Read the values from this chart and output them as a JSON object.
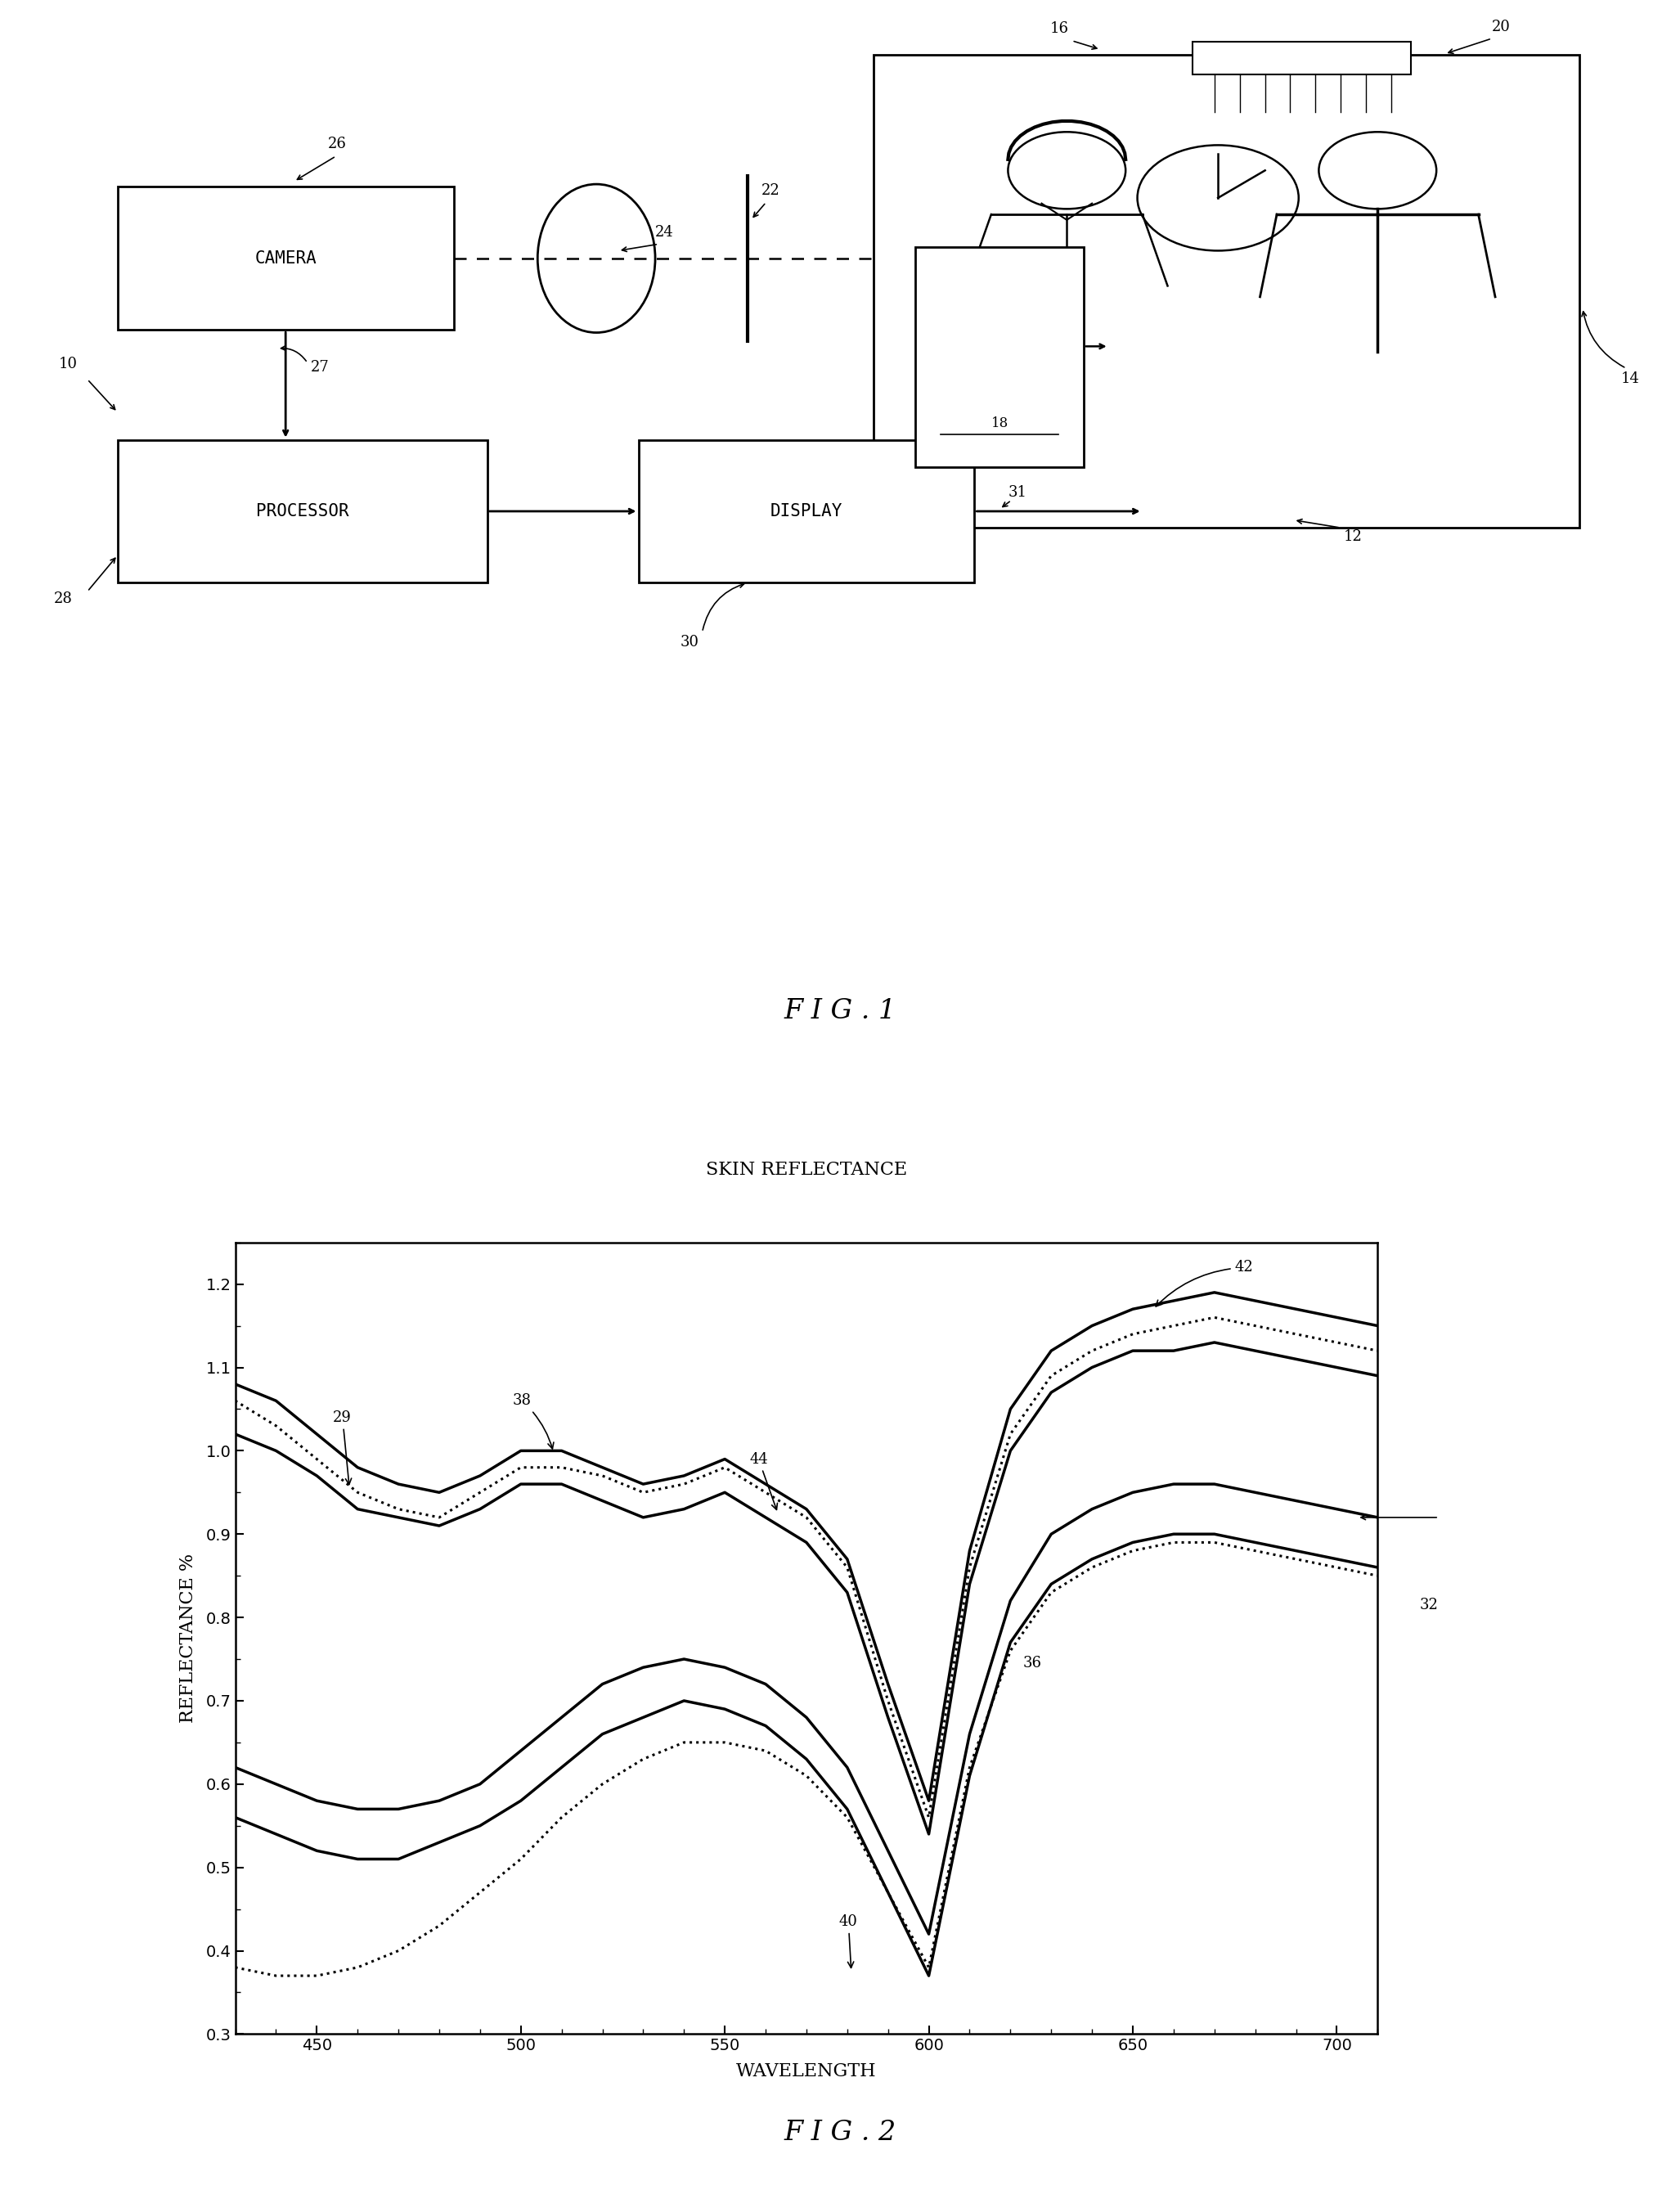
{
  "fig1": {
    "labels": {
      "camera": "CAMERA",
      "processor": "PROCESSOR",
      "display": "DISPLAY"
    },
    "fig_label": "F I G . 1"
  },
  "fig2": {
    "title": "SKIN REFLECTANCE",
    "xlabel": "WAVELENGTH",
    "ylabel": "REFLECTANCE %",
    "xlim": [
      430,
      710
    ],
    "ylim": [
      0.3,
      1.25
    ],
    "xticks": [
      450,
      500,
      550,
      600,
      650,
      700
    ],
    "yticks": [
      0.3,
      0.4,
      0.5,
      0.6,
      0.7,
      0.8,
      0.9,
      1.0,
      1.1,
      1.2
    ],
    "wavelengths": [
      430,
      440,
      450,
      460,
      470,
      480,
      490,
      500,
      510,
      520,
      530,
      540,
      550,
      560,
      570,
      580,
      590,
      600,
      610,
      620,
      630,
      640,
      650,
      660,
      670,
      680,
      690,
      700,
      710
    ],
    "curve_upper1": [
      1.08,
      1.06,
      1.02,
      0.98,
      0.96,
      0.95,
      0.97,
      1.0,
      1.0,
      0.98,
      0.96,
      0.97,
      0.99,
      0.96,
      0.93,
      0.87,
      0.72,
      0.58,
      0.88,
      1.05,
      1.12,
      1.15,
      1.17,
      1.18,
      1.19,
      1.18,
      1.17,
      1.16,
      1.15
    ],
    "curve_upper2": [
      1.02,
      1.0,
      0.97,
      0.93,
      0.92,
      0.91,
      0.93,
      0.96,
      0.96,
      0.94,
      0.92,
      0.93,
      0.95,
      0.92,
      0.89,
      0.83,
      0.68,
      0.54,
      0.84,
      1.0,
      1.07,
      1.1,
      1.12,
      1.12,
      1.13,
      1.12,
      1.11,
      1.1,
      1.09
    ],
    "curve_dotted_upper": [
      1.06,
      1.03,
      0.99,
      0.95,
      0.93,
      0.92,
      0.95,
      0.98,
      0.98,
      0.97,
      0.95,
      0.96,
      0.98,
      0.95,
      0.92,
      0.86,
      0.7,
      0.56,
      0.86,
      1.02,
      1.09,
      1.12,
      1.14,
      1.15,
      1.16,
      1.15,
      1.14,
      1.13,
      1.12
    ],
    "curve_lower1": [
      0.62,
      0.6,
      0.58,
      0.57,
      0.57,
      0.58,
      0.6,
      0.64,
      0.68,
      0.72,
      0.74,
      0.75,
      0.74,
      0.72,
      0.68,
      0.62,
      0.52,
      0.42,
      0.66,
      0.82,
      0.9,
      0.93,
      0.95,
      0.96,
      0.96,
      0.95,
      0.94,
      0.93,
      0.92
    ],
    "curve_lower2": [
      0.56,
      0.54,
      0.52,
      0.51,
      0.51,
      0.53,
      0.55,
      0.58,
      0.62,
      0.66,
      0.68,
      0.7,
      0.69,
      0.67,
      0.63,
      0.57,
      0.47,
      0.37,
      0.61,
      0.77,
      0.84,
      0.87,
      0.89,
      0.9,
      0.9,
      0.89,
      0.88,
      0.87,
      0.86
    ],
    "curve_dotted_lower": [
      0.38,
      0.37,
      0.37,
      0.38,
      0.4,
      0.43,
      0.47,
      0.51,
      0.56,
      0.6,
      0.63,
      0.65,
      0.65,
      0.64,
      0.61,
      0.56,
      0.47,
      0.38,
      0.62,
      0.76,
      0.83,
      0.86,
      0.88,
      0.89,
      0.89,
      0.88,
      0.87,
      0.86,
      0.85
    ],
    "fig_label": "F I G . 2"
  }
}
